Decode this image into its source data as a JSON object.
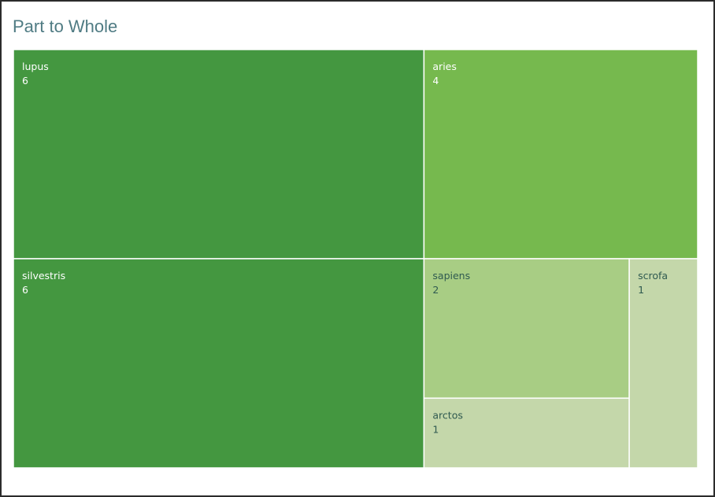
{
  "title": "Part to Whole",
  "chart_data": {
    "type": "treemap",
    "title": "Part to Whole",
    "items": [
      {
        "name": "lupus",
        "value": 6,
        "color": "#449740",
        "text_color": "#ffffff"
      },
      {
        "name": "silvestris",
        "value": 6,
        "color": "#449740",
        "text_color": "#ffffff"
      },
      {
        "name": "aries",
        "value": 4,
        "color": "#76b94e",
        "text_color": "#ffffff"
      },
      {
        "name": "sapiens",
        "value": 2,
        "color": "#a8cd84",
        "text_color": "#2f5a50"
      },
      {
        "name": "arctos",
        "value": 1,
        "color": "#c4d7aa",
        "text_color": "#2f5a50"
      },
      {
        "name": "scrofa",
        "value": 1,
        "color": "#c4d7aa",
        "text_color": "#2f5a50"
      }
    ]
  }
}
